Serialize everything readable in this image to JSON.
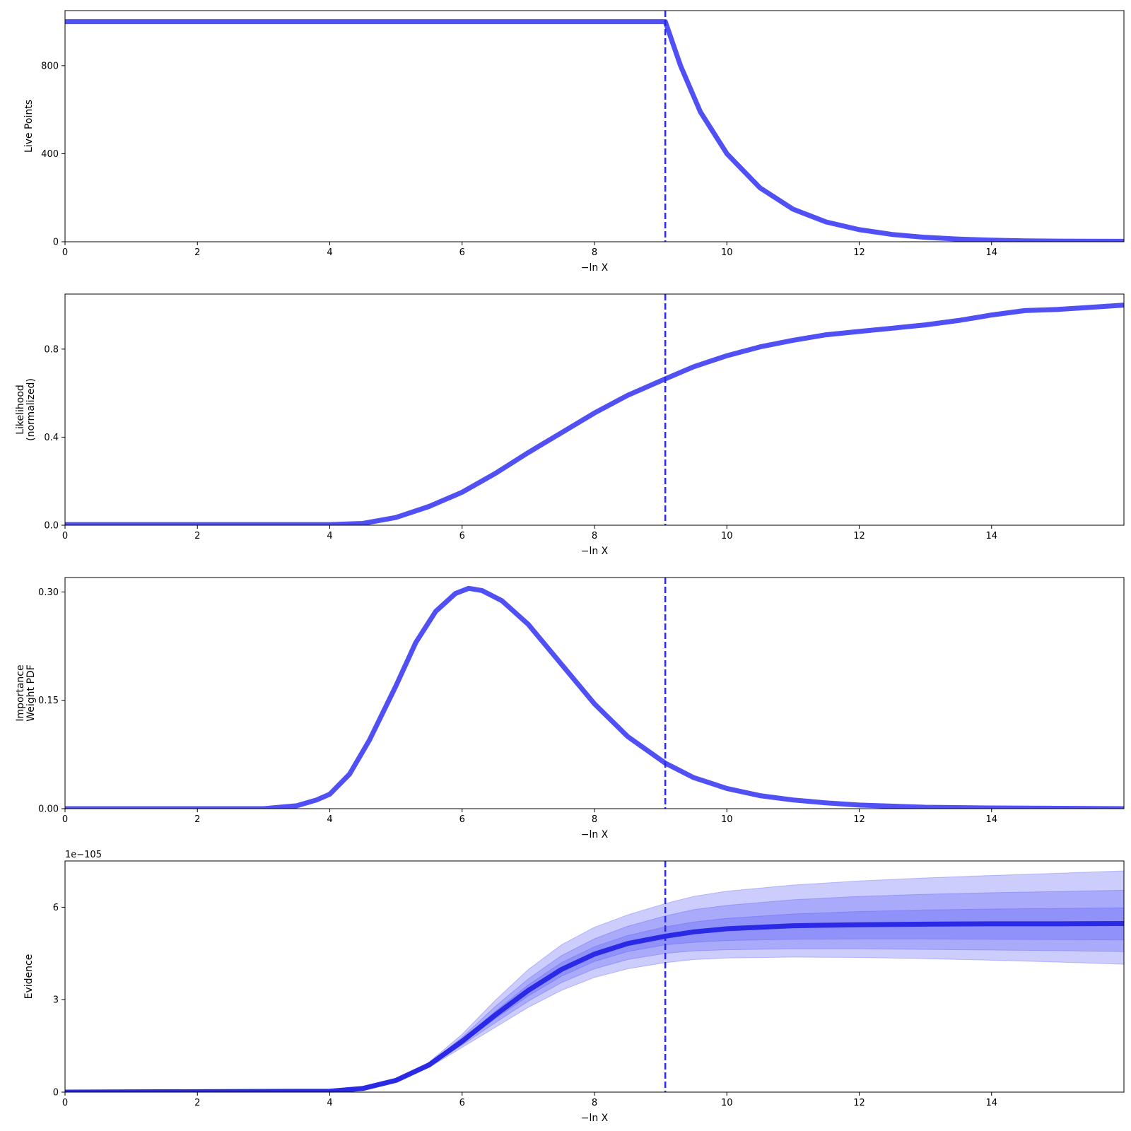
{
  "figure": {
    "line_color": "#5050f5",
    "marker_color": "#2a2ae6",
    "band_color": "#5a5af8"
  },
  "chart_data": [
    {
      "type": "line",
      "xlabel": "−ln X",
      "ylabel": [
        "Live Points"
      ],
      "xlim": [
        0,
        16
      ],
      "ylim": [
        0,
        1050
      ],
      "x_ticks": [
        0,
        2,
        4,
        6,
        8,
        10,
        12,
        14
      ],
      "y_ticks": [
        0,
        400,
        800
      ],
      "y_tick_labels": [
        "0",
        "400",
        "800"
      ],
      "marker_x": 9.07,
      "series": [
        {
          "x": [
            0,
            9.07,
            9.3,
            9.6,
            10.0,
            10.5,
            11.0,
            11.5,
            12.0,
            12.5,
            13.0,
            13.5,
            14.0,
            14.5,
            15.0,
            16.0
          ],
          "y": [
            1000,
            1000,
            800,
            590,
            400,
            245,
            148,
            90,
            55,
            33,
            20,
            12,
            7,
            4,
            3,
            2
          ]
        }
      ]
    },
    {
      "type": "line",
      "xlabel": "−ln X",
      "ylabel": [
        "Likelihood",
        "(normalized)"
      ],
      "xlim": [
        0,
        16
      ],
      "ylim": [
        0,
        1.05
      ],
      "x_ticks": [
        0,
        2,
        4,
        6,
        8,
        10,
        12,
        14
      ],
      "y_ticks": [
        0,
        0.4,
        0.8
      ],
      "y_tick_labels": [
        "0.0",
        "0.4",
        "0.8"
      ],
      "marker_x": 9.07,
      "series": [
        {
          "x": [
            0,
            4.0,
            4.5,
            5.0,
            5.5,
            6.0,
            6.5,
            7.0,
            7.5,
            8.0,
            8.5,
            9.07,
            9.5,
            10.0,
            10.5,
            11.0,
            11.5,
            12.0,
            12.5,
            13.0,
            13.5,
            14.0,
            14.5,
            15.0,
            16.0
          ],
          "y": [
            0.003,
            0.003,
            0.008,
            0.035,
            0.085,
            0.15,
            0.235,
            0.33,
            0.42,
            0.51,
            0.59,
            0.665,
            0.72,
            0.77,
            0.81,
            0.84,
            0.865,
            0.88,
            0.895,
            0.91,
            0.93,
            0.955,
            0.975,
            0.98,
            1.0
          ]
        }
      ]
    },
    {
      "type": "line",
      "xlabel": "−ln X",
      "ylabel": [
        "Importance",
        "Weight PDF"
      ],
      "xlim": [
        0,
        16
      ],
      "ylim": [
        0,
        0.32
      ],
      "x_ticks": [
        0,
        2,
        4,
        6,
        8,
        10,
        12,
        14
      ],
      "y_ticks": [
        0,
        0.15,
        0.3
      ],
      "y_tick_labels": [
        "0.00",
        "0.15",
        "0.30"
      ],
      "marker_x": 9.07,
      "series": [
        {
          "x": [
            0,
            3.0,
            3.5,
            3.8,
            4.0,
            4.3,
            4.6,
            5.0,
            5.3,
            5.6,
            5.9,
            6.1,
            6.3,
            6.6,
            7.0,
            7.5,
            8.0,
            8.5,
            9.07,
            9.5,
            10.0,
            10.5,
            11.0,
            11.5,
            12.0,
            13.0,
            14.0,
            16.0
          ],
          "y": [
            0.0,
            0.0,
            0.004,
            0.012,
            0.02,
            0.048,
            0.095,
            0.17,
            0.23,
            0.273,
            0.298,
            0.305,
            0.302,
            0.288,
            0.255,
            0.2,
            0.145,
            0.1,
            0.063,
            0.043,
            0.028,
            0.018,
            0.012,
            0.008,
            0.005,
            0.002,
            0.001,
            0.0
          ]
        }
      ]
    },
    {
      "type": "area",
      "xlabel": "−ln X",
      "ylabel": [
        "Evidence"
      ],
      "offset_label": "1e−105",
      "xlim": [
        0,
        16
      ],
      "ylim": [
        0,
        7.5
      ],
      "x_ticks": [
        0,
        2,
        4,
        6,
        8,
        10,
        12,
        14
      ],
      "y_ticks": [
        0,
        3,
        6
      ],
      "y_tick_labels": [
        "0",
        "3",
        "6"
      ],
      "marker_x": 9.07,
      "x": [
        0,
        4.0,
        4.5,
        5.0,
        5.5,
        6.0,
        6.5,
        7.0,
        7.5,
        8.0,
        8.5,
        9.07,
        9.5,
        10.0,
        11.0,
        12.0,
        13.0,
        14.0,
        15.0,
        16.0
      ],
      "mean": [
        0.0,
        0.03,
        0.12,
        0.38,
        0.88,
        1.65,
        2.5,
        3.3,
        3.98,
        4.48,
        4.82,
        5.06,
        5.2,
        5.3,
        5.4,
        5.43,
        5.45,
        5.46,
        5.46,
        5.47
      ],
      "bands": [
        {
          "lower": [
            0.0,
            0.03,
            0.11,
            0.35,
            0.8,
            1.45,
            2.1,
            2.75,
            3.3,
            3.72,
            4.0,
            4.2,
            4.3,
            4.35,
            4.38,
            4.37,
            4.33,
            4.28,
            4.22,
            4.15
          ],
          "upper": [
            0.0,
            0.03,
            0.13,
            0.41,
            0.97,
            1.88,
            2.98,
            3.98,
            4.78,
            5.35,
            5.75,
            6.12,
            6.35,
            6.52,
            6.72,
            6.85,
            6.95,
            7.03,
            7.1,
            7.18
          ]
        },
        {
          "lower": [
            0.0,
            0.03,
            0.115,
            0.365,
            0.83,
            1.53,
            2.25,
            2.95,
            3.55,
            4.0,
            4.3,
            4.5,
            4.58,
            4.62,
            4.65,
            4.65,
            4.63,
            4.61,
            4.59,
            4.56
          ],
          "upper": [
            0.0,
            0.03,
            0.125,
            0.395,
            0.93,
            1.78,
            2.78,
            3.68,
            4.43,
            4.98,
            5.38,
            5.72,
            5.92,
            6.06,
            6.24,
            6.35,
            6.42,
            6.47,
            6.51,
            6.55
          ]
        },
        {
          "lower": [
            0.0,
            0.03,
            0.118,
            0.372,
            0.855,
            1.59,
            2.38,
            3.12,
            3.76,
            4.24,
            4.56,
            4.78,
            4.86,
            4.92,
            4.96,
            4.97,
            4.97,
            4.96,
            4.95,
            4.94
          ],
          "upper": [
            0.0,
            0.03,
            0.122,
            0.388,
            0.905,
            1.71,
            2.62,
            3.48,
            4.2,
            4.72,
            5.08,
            5.36,
            5.52,
            5.64,
            5.78,
            5.86,
            5.91,
            5.94,
            5.96,
            5.98
          ]
        }
      ]
    }
  ]
}
